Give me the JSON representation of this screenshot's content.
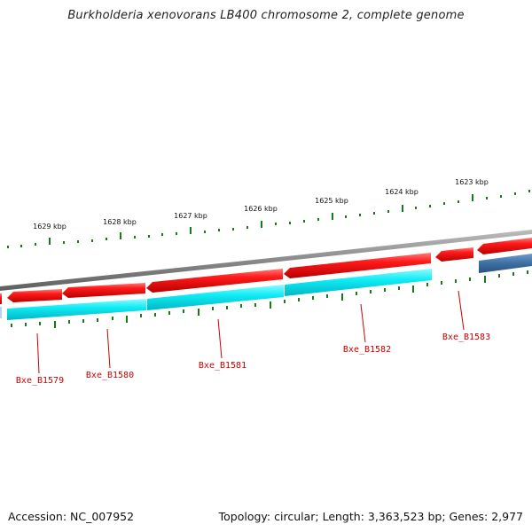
{
  "title": "Burkholderia xenovorans LB400 chromosome 2, complete genome",
  "footer": {
    "accession": "Accession: NC_007952",
    "summary": "Topology: circular; Length: 3,363,523 bp; Genes: 2,977"
  },
  "scale_ticks": [
    {
      "label": "1629 kbp"
    },
    {
      "label": "1628 kbp"
    },
    {
      "label": "1627 kbp"
    },
    {
      "label": "1626 kbp"
    },
    {
      "label": "1625 kbp"
    },
    {
      "label": "1624 kbp"
    },
    {
      "label": "1623 kbp"
    }
  ],
  "gene_labels": [
    {
      "text": "Bxe_B1579"
    },
    {
      "text": "Bxe_B1580"
    },
    {
      "text": "Bxe_B1581"
    },
    {
      "text": "Bxe_B1582"
    },
    {
      "text": "Bxe_B1583"
    }
  ],
  "colors": {
    "forward_feature": "#ee1111",
    "cds_feature": "#00e5ee",
    "steel_feature": "#3d6fa3",
    "backbone": "#888888",
    "ticks": "#1a7a1a",
    "gene_label": "#cc0000"
  }
}
